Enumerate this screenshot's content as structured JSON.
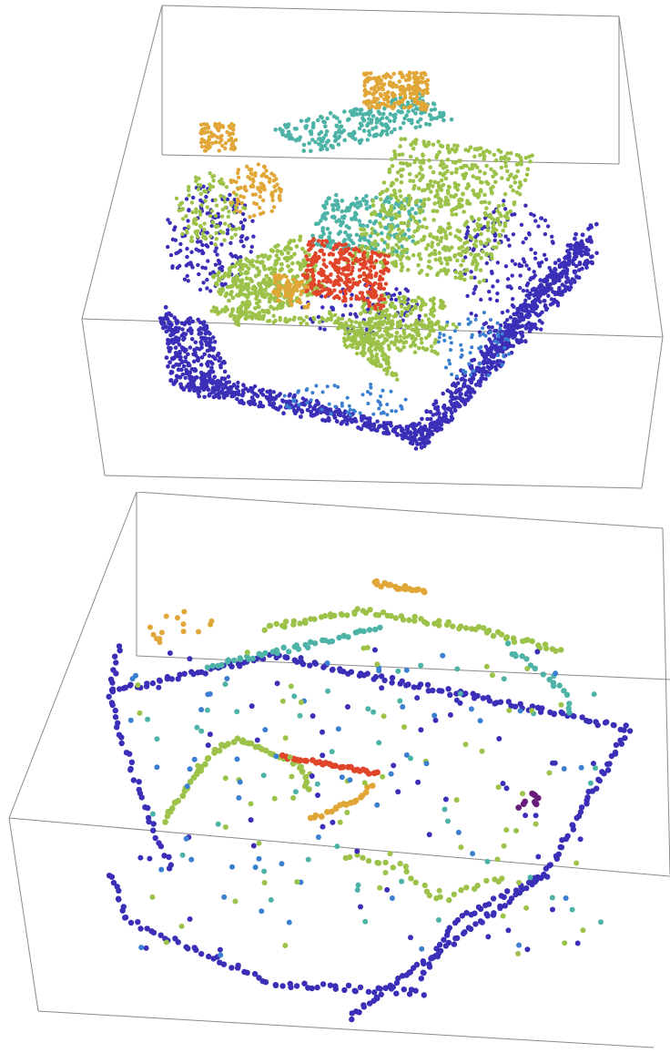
{
  "figure": {
    "panels": [
      {
        "id": "dense",
        "kind": "3d-point-cloud",
        "density": "dense",
        "palette": "height-rainbow"
      },
      {
        "id": "sparse",
        "kind": "3d-point-cloud",
        "density": "sparse",
        "palette": "height-rainbow"
      }
    ],
    "colors": {
      "low": "#3b2fb8",
      "low_mid": "#3a7fd0",
      "mid": "#4db3a6",
      "mid_high": "#9cc24a",
      "high": "#e0a637",
      "top": "#e0452a",
      "bounding_box": "#8a8a8a"
    }
  }
}
